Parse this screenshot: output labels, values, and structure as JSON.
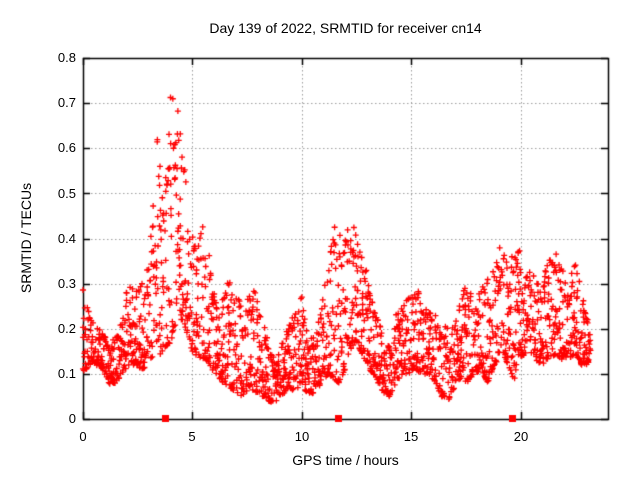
{
  "chart_data": {
    "type": "scatter",
    "title": "Day 139 of 2022, SRMTID for receiver cn14",
    "xlabel": "GPS time / hours",
    "ylabel": "SRMTID / TECUs",
    "xlim": [
      0,
      24
    ],
    "ylim": [
      0,
      0.8
    ],
    "xticks": [
      0,
      5,
      10,
      15,
      20
    ],
    "xtick_labels": [
      "0",
      "5",
      "10",
      "15",
      "20"
    ],
    "yticks": [
      0,
      0.1,
      0.2,
      0.3,
      0.4,
      0.5,
      0.6,
      0.7,
      0.8
    ],
    "ytick_labels": [
      "0",
      "0.1",
      "0.2",
      "0.3",
      "0.4",
      "0.5",
      "0.6",
      "0.7",
      "0.8"
    ],
    "grid": {
      "show": true,
      "style": "dotted",
      "color": "#9a9a9a"
    },
    "border": true,
    "colors": {
      "points": "#ff0000",
      "axis": "#000000",
      "text": "#000000",
      "background": "#ffffff"
    },
    "series": [
      {
        "name": "SRMTID",
        "marker": "plus",
        "color": "#ff0000",
        "approx_point_count": 2100,
        "peak": {
          "x": 4.0,
          "y": 0.745
        },
        "envelope": [
          [
            0.0,
            0.1,
            0.29
          ],
          [
            0.3,
            0.12,
            0.24
          ],
          [
            0.6,
            0.12,
            0.21
          ],
          [
            0.9,
            0.11,
            0.19
          ],
          [
            1.2,
            0.075,
            0.17
          ],
          [
            1.5,
            0.08,
            0.18
          ],
          [
            1.8,
            0.1,
            0.24
          ],
          [
            2.1,
            0.12,
            0.31
          ],
          [
            2.4,
            0.12,
            0.28
          ],
          [
            2.7,
            0.11,
            0.3
          ],
          [
            3.0,
            0.12,
            0.34
          ],
          [
            3.2,
            0.14,
            0.47
          ],
          [
            3.4,
            0.15,
            0.62
          ],
          [
            3.6,
            0.14,
            0.53
          ],
          [
            3.8,
            0.16,
            0.57
          ],
          [
            4.0,
            0.17,
            0.745
          ],
          [
            4.2,
            0.2,
            0.71
          ],
          [
            4.4,
            0.22,
            0.73
          ],
          [
            4.55,
            0.22,
            0.6
          ],
          [
            4.7,
            0.2,
            0.53
          ],
          [
            4.85,
            0.17,
            0.46
          ],
          [
            5.0,
            0.15,
            0.41
          ],
          [
            5.2,
            0.14,
            0.37
          ],
          [
            5.45,
            0.13,
            0.43
          ],
          [
            5.7,
            0.13,
            0.4
          ],
          [
            5.9,
            0.11,
            0.3
          ],
          [
            6.1,
            0.1,
            0.27
          ],
          [
            6.4,
            0.08,
            0.3
          ],
          [
            6.7,
            0.07,
            0.31
          ],
          [
            7.0,
            0.06,
            0.3
          ],
          [
            7.3,
            0.05,
            0.23
          ],
          [
            7.6,
            0.07,
            0.28
          ],
          [
            7.9,
            0.06,
            0.29
          ],
          [
            8.2,
            0.05,
            0.23
          ],
          [
            8.5,
            0.04,
            0.16
          ],
          [
            8.8,
            0.035,
            0.13
          ],
          [
            9.1,
            0.05,
            0.17
          ],
          [
            9.4,
            0.07,
            0.22
          ],
          [
            9.7,
            0.06,
            0.23
          ],
          [
            10.0,
            0.08,
            0.28
          ],
          [
            10.3,
            0.05,
            0.18
          ],
          [
            10.6,
            0.06,
            0.18
          ],
          [
            10.9,
            0.08,
            0.26
          ],
          [
            11.2,
            0.1,
            0.33
          ],
          [
            11.45,
            0.09,
            0.43
          ],
          [
            11.7,
            0.08,
            0.42
          ],
          [
            11.9,
            0.1,
            0.38
          ],
          [
            12.1,
            0.13,
            0.42
          ],
          [
            12.3,
            0.16,
            0.44
          ],
          [
            12.5,
            0.17,
            0.41
          ],
          [
            12.7,
            0.15,
            0.39
          ],
          [
            12.9,
            0.13,
            0.35
          ],
          [
            13.1,
            0.11,
            0.28
          ],
          [
            13.4,
            0.09,
            0.23
          ],
          [
            13.7,
            0.06,
            0.19
          ],
          [
            14.0,
            0.05,
            0.18
          ],
          [
            14.3,
            0.08,
            0.23
          ],
          [
            14.6,
            0.1,
            0.25
          ],
          [
            14.9,
            0.1,
            0.27
          ],
          [
            15.2,
            0.11,
            0.31
          ],
          [
            15.5,
            0.1,
            0.26
          ],
          [
            15.8,
            0.1,
            0.24
          ],
          [
            16.1,
            0.08,
            0.23
          ],
          [
            16.4,
            0.05,
            0.21
          ],
          [
            16.7,
            0.04,
            0.2
          ],
          [
            17.0,
            0.07,
            0.23
          ],
          [
            17.3,
            0.09,
            0.28
          ],
          [
            17.6,
            0.08,
            0.3
          ],
          [
            17.9,
            0.1,
            0.25
          ],
          [
            18.2,
            0.11,
            0.29
          ],
          [
            18.5,
            0.08,
            0.31
          ],
          [
            18.8,
            0.12,
            0.33
          ],
          [
            19.05,
            0.13,
            0.38
          ],
          [
            19.2,
            0.14,
            0.4
          ],
          [
            19.45,
            0.12,
            0.32
          ],
          [
            19.7,
            0.08,
            0.4
          ],
          [
            19.9,
            0.14,
            0.4
          ],
          [
            20.1,
            0.14,
            0.31
          ],
          [
            20.4,
            0.15,
            0.33
          ],
          [
            20.7,
            0.13,
            0.31
          ],
          [
            21.0,
            0.12,
            0.29
          ],
          [
            21.35,
            0.14,
            0.41
          ],
          [
            21.6,
            0.14,
            0.37
          ],
          [
            21.9,
            0.13,
            0.33
          ],
          [
            22.2,
            0.14,
            0.31
          ],
          [
            22.5,
            0.13,
            0.35
          ],
          [
            22.8,
            0.12,
            0.28
          ],
          [
            23.0,
            0.12,
            0.24
          ],
          [
            23.2,
            0.13,
            0.2
          ]
        ]
      },
      {
        "name": "event-markers",
        "marker": "filled-square",
        "color": "#ff0000",
        "y": 0,
        "x": [
          3.74,
          11.67,
          19.6
        ]
      }
    ],
    "gen": {
      "seed": 139,
      "x_step": 0.05,
      "x_jitter": 0.05,
      "pts_min": 3,
      "pts_max": 6,
      "top_frac": 0.16,
      "top_spread": 0.25,
      "low_pow": 1.8,
      "low_span": 0.9
    }
  }
}
